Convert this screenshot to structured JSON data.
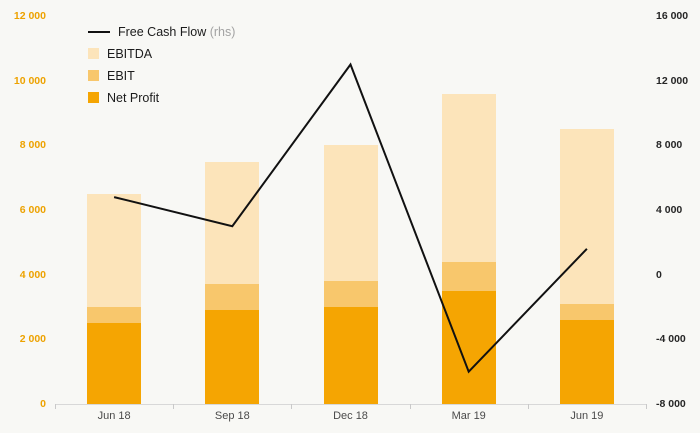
{
  "chart_data": {
    "type": "bar",
    "bars_mode": "overlay",
    "line_overlay": true,
    "title": "",
    "categories": [
      "Jun 18",
      "Sep 18",
      "Dec 18",
      "Mar 19",
      "Jun 19"
    ],
    "bar_series": [
      {
        "name": "EBITDA",
        "color": "#fce4ba",
        "axis": "left",
        "values": [
          6500,
          7500,
          8000,
          9600,
          8500
        ]
      },
      {
        "name": "EBIT",
        "color": "#f8c76c",
        "axis": "left",
        "values": [
          3000,
          3700,
          3800,
          4400,
          3100
        ]
      },
      {
        "name": "Net Profit",
        "color": "#f5a502",
        "axis": "left",
        "values": [
          2500,
          2900,
          3000,
          3500,
          2600
        ]
      }
    ],
    "line_series": {
      "name": "Free Cash Flow",
      "axis": "right",
      "color": "#111111",
      "values": [
        4800,
        3000,
        13000,
        -6000,
        1600
      ]
    },
    "left_axis": {
      "min": 0,
      "max": 12000,
      "step": 2000,
      "labels": [
        "0",
        "2 000",
        "4 000",
        "6 000",
        "8 000",
        "10 000",
        "12 000"
      ],
      "color": "#eda200"
    },
    "right_axis": {
      "min": -8000,
      "max": 16000,
      "step": 4000,
      "labels": [
        "-8 000",
        "-4 000",
        "0",
        "4 000",
        "8 000",
        "12 000",
        "16 000"
      ],
      "color": "#262626"
    },
    "legend": [
      {
        "label": "Free Cash Flow",
        "suffix": " (rhs)",
        "type": "line",
        "color": "#111111"
      },
      {
        "label": "EBITDA",
        "type": "swatch",
        "color": "#fce4ba"
      },
      {
        "label": "EBIT",
        "type": "swatch",
        "color": "#f8c76c"
      },
      {
        "label": "Net Profit",
        "type": "swatch",
        "color": "#f5a502"
      }
    ],
    "grid": false,
    "legend_position": "top-left",
    "background": "#f8f8f5"
  }
}
